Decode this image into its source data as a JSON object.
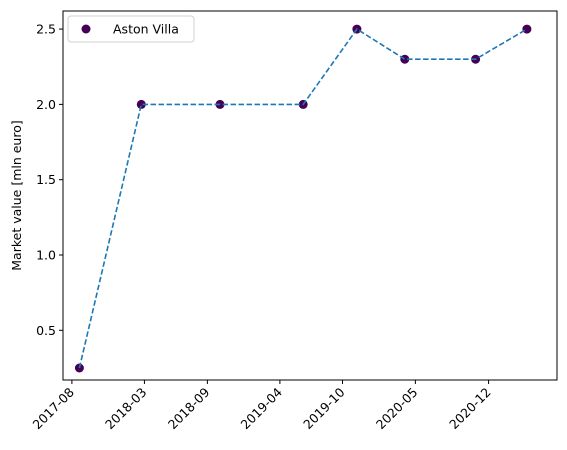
{
  "chart_data": {
    "type": "scatter",
    "title": "",
    "xlabel": "",
    "ylabel": "Market value [mln euro]",
    "x_tick_labels": [
      "2017-08",
      "2018-03",
      "2018-09",
      "2019-04",
      "2019-10",
      "2020-05",
      "2020-12"
    ],
    "x_ticks": [
      "2017-08-01",
      "2018-03-01",
      "2018-09-01",
      "2019-04-01",
      "2019-10-01",
      "2020-05-01",
      "2020-12-01"
    ],
    "y_ticks": [
      0.5,
      1.0,
      1.5,
      2.0,
      2.5
    ],
    "y_tick_labels": [
      "0.5",
      "1.0",
      "1.5",
      "2.0",
      "2.5"
    ],
    "xlim": [
      "2017-07-06",
      "2021-06-19"
    ],
    "ylim": [
      0.17,
      2.62
    ],
    "grid": false,
    "legend": "top-left",
    "series": [
      {
        "name": "Aston Villa",
        "marker_color": "#440154",
        "line_color": "#1f77b4",
        "line_style": "dashed",
        "points": [
          {
            "x": "2017-08-23",
            "y": 0.25
          },
          {
            "x": "2018-02-20",
            "y": 2.0
          },
          {
            "x": "2018-10-08",
            "y": 2.0
          },
          {
            "x": "2019-06-08",
            "y": 2.0
          },
          {
            "x": "2019-11-12",
            "y": 2.5
          },
          {
            "x": "2020-03-31",
            "y": 2.3
          },
          {
            "x": "2020-10-24",
            "y": 2.3
          },
          {
            "x": "2021-03-23",
            "y": 2.5
          }
        ]
      }
    ]
  }
}
